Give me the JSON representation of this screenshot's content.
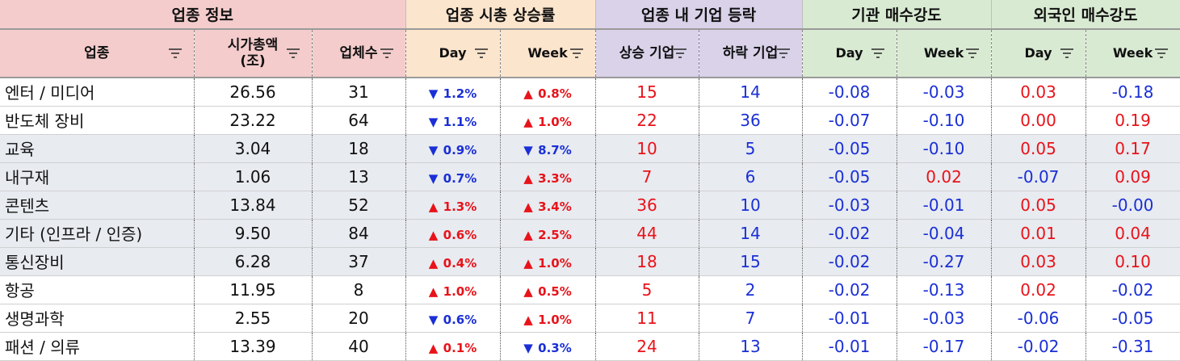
{
  "groups": {
    "info": "업종 정보",
    "mcap": "업종 시총 상승률",
    "count": "업종 내 기업 등락",
    "inst": "기관 매수강도",
    "foreign": "외국인 매수강도"
  },
  "headers": {
    "sector": "업종",
    "mcap_line1": "시가총액",
    "mcap_line2": "(조)",
    "firms": "업체수",
    "day": "Day",
    "week": "Week",
    "up": "상승 기업",
    "down": "하락 기업",
    "inst_day": "Day",
    "inst_week": "Week",
    "for_day": "Day",
    "for_week": "Week"
  },
  "icons": {
    "filter": "filter-sort-icon",
    "up": "up-triangle-icon",
    "down": "down-triangle-icon"
  },
  "colors": {
    "positive": "#e8131a",
    "negative": "#1a2fd6",
    "shade": "#e8ebf0"
  },
  "rows": [
    {
      "sector": "엔터 / 미디어",
      "mcap": "26.56",
      "firms": "31",
      "day_dir": "down",
      "day": "1.2%",
      "week_dir": "up",
      "week": "0.8%",
      "up": "15",
      "down": "14",
      "inst_day": "-0.08",
      "inst_week": "-0.03",
      "for_day": "0.03",
      "for_week": "-0.18"
    },
    {
      "sector": "반도체 장비",
      "mcap": "23.22",
      "firms": "64",
      "day_dir": "down",
      "day": "1.1%",
      "week_dir": "up",
      "week": "1.0%",
      "up": "22",
      "down": "36",
      "inst_day": "-0.07",
      "inst_week": "-0.10",
      "for_day": "0.00",
      "for_week": "0.19"
    },
    {
      "sector": "교육",
      "mcap": "3.04",
      "firms": "18",
      "day_dir": "down",
      "day": "0.9%",
      "week_dir": "down",
      "week": "8.7%",
      "up": "10",
      "down": "5",
      "inst_day": "-0.05",
      "inst_week": "-0.10",
      "for_day": "0.05",
      "for_week": "0.17"
    },
    {
      "sector": "내구재",
      "mcap": "1.06",
      "firms": "13",
      "day_dir": "down",
      "day": "0.7%",
      "week_dir": "up",
      "week": "3.3%",
      "up": "7",
      "down": "6",
      "inst_day": "-0.05",
      "inst_week": "0.02",
      "for_day": "-0.07",
      "for_week": "0.09"
    },
    {
      "sector": "콘텐츠",
      "mcap": "13.84",
      "firms": "52",
      "day_dir": "up",
      "day": "1.3%",
      "week_dir": "up",
      "week": "3.4%",
      "up": "36",
      "down": "10",
      "inst_day": "-0.03",
      "inst_week": "-0.01",
      "for_day": "0.05",
      "for_week": "-0.00"
    },
    {
      "sector": "기타 (인프라 / 인증)",
      "mcap": "9.50",
      "firms": "84",
      "day_dir": "up",
      "day": "0.6%",
      "week_dir": "up",
      "week": "2.5%",
      "up": "44",
      "down": "14",
      "inst_day": "-0.02",
      "inst_week": "-0.04",
      "for_day": "0.01",
      "for_week": "0.04"
    },
    {
      "sector": "통신장비",
      "mcap": "6.28",
      "firms": "37",
      "day_dir": "up",
      "day": "0.4%",
      "week_dir": "up",
      "week": "1.0%",
      "up": "18",
      "down": "15",
      "inst_day": "-0.02",
      "inst_week": "-0.27",
      "for_day": "0.03",
      "for_week": "0.10"
    },
    {
      "sector": "항공",
      "mcap": "11.95",
      "firms": "8",
      "day_dir": "up",
      "day": "1.0%",
      "week_dir": "up",
      "week": "0.5%",
      "up": "5",
      "down": "2",
      "inst_day": "-0.02",
      "inst_week": "-0.13",
      "for_day": "0.02",
      "for_week": "-0.02"
    },
    {
      "sector": "생명과학",
      "mcap": "2.55",
      "firms": "20",
      "day_dir": "down",
      "day": "0.6%",
      "week_dir": "up",
      "week": "1.0%",
      "up": "11",
      "down": "7",
      "inst_day": "-0.01",
      "inst_week": "-0.03",
      "for_day": "-0.06",
      "for_week": "-0.05"
    },
    {
      "sector": "패션 / 의류",
      "mcap": "13.39",
      "firms": "40",
      "day_dir": "up",
      "day": "0.1%",
      "week_dir": "down",
      "week": "0.3%",
      "up": "24",
      "down": "13",
      "inst_day": "-0.01",
      "inst_week": "-0.17",
      "for_day": "-0.02",
      "for_week": "-0.31"
    }
  ]
}
